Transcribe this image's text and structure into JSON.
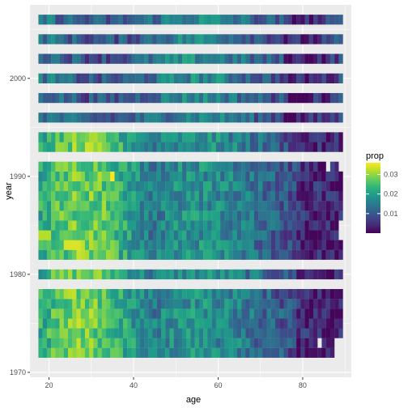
{
  "chart_data": {
    "type": "heatmap",
    "title": "",
    "xlabel": "age",
    "ylabel": "year",
    "x_ticks": [
      20,
      40,
      60,
      80
    ],
    "y_ticks": [
      1970,
      1980,
      1990,
      2000
    ],
    "xlim": [
      15.5,
      91.5
    ],
    "ylim": [
      1969.5,
      2007.5
    ],
    "x_range": [
      18,
      89
    ],
    "years": [
      1972,
      1973,
      1974,
      1975,
      1976,
      1977,
      1978,
      1980,
      1982,
      1983,
      1984,
      1985,
      1986,
      1987,
      1988,
      1989,
      1990,
      1991,
      1993,
      1994,
      1996,
      1998,
      2000,
      2002,
      2004,
      2006
    ],
    "legend": {
      "title": "prop",
      "ticks": [
        0.01,
        0.02,
        0.03
      ],
      "min": 0.0,
      "max": 0.036,
      "position": "right"
    },
    "colors": {
      "panel_bg": "#ebebeb",
      "grid": "#ffffff",
      "axis_text": "#4d4d4d",
      "title_text": "#000000"
    },
    "palette": [
      "#440154",
      "#482878",
      "#3e4989",
      "#31688e",
      "#26828e",
      "#1f9e89",
      "#35b779",
      "#6ece58",
      "#b5de2b",
      "#fde725"
    ],
    "missing_cells": [
      [
        1972,
        88
      ],
      [
        1972,
        89
      ],
      [
        1973,
        84
      ],
      [
        1973,
        88
      ],
      [
        1973,
        89
      ],
      [
        1984,
        89
      ],
      [
        1985,
        89
      ],
      [
        1991,
        86
      ],
      [
        1991,
        89
      ]
    ]
  }
}
